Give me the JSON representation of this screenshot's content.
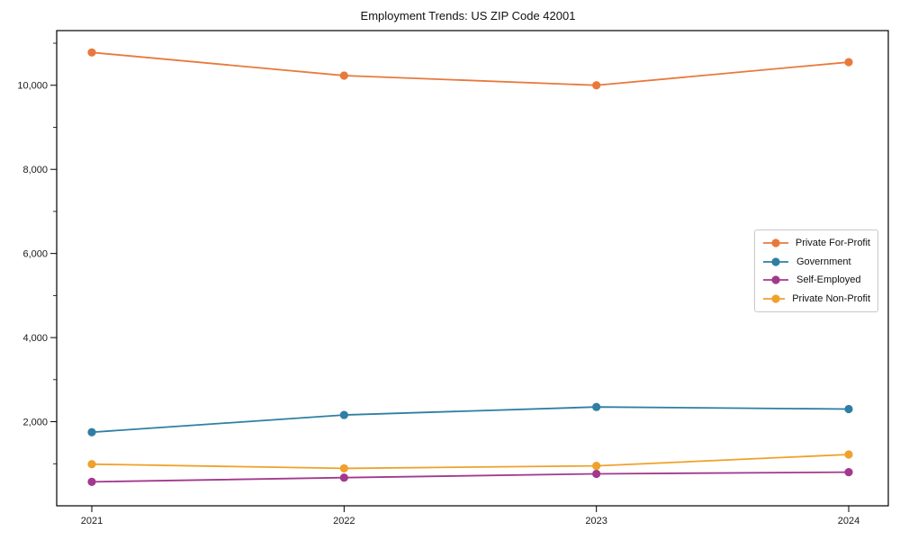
{
  "chart_data": {
    "type": "line",
    "title": "Employment Trends: US ZIP Code 42001",
    "categories": [
      "2021",
      "2022",
      "2023",
      "2024"
    ],
    "series": [
      {
        "name": "Private For-Profit",
        "color": "#E8793D",
        "values": [
          10780,
          10230,
          10000,
          10550
        ]
      },
      {
        "name": "Government",
        "color": "#2E7FA3",
        "values": [
          1750,
          2160,
          2350,
          2300
        ]
      },
      {
        "name": "Self-Employed",
        "color": "#A2398D",
        "values": [
          570,
          670,
          760,
          800
        ]
      },
      {
        "name": "Private Non-Profit",
        "color": "#EFA12B",
        "values": [
          990,
          890,
          950,
          1220
        ]
      }
    ],
    "xlabel": "",
    "ylabel": "",
    "ylim": [
      0,
      11300
    ],
    "yticks": [
      {
        "value": 2000,
        "label": "2,000"
      },
      {
        "value": 4000,
        "label": "4,000"
      },
      {
        "value": 6000,
        "label": "6,000"
      },
      {
        "value": 8000,
        "label": "8,000"
      },
      {
        "value": 10000,
        "label": "10,000"
      }
    ],
    "y_minor_tick_step": 1000,
    "grid": false,
    "legend_position": "center-right",
    "marker": "circle",
    "axis_color": "#000000",
    "tick_label_color": "#1a1a1a",
    "legend_border_color": "#c8c8c8",
    "background_color": "#ffffff"
  }
}
